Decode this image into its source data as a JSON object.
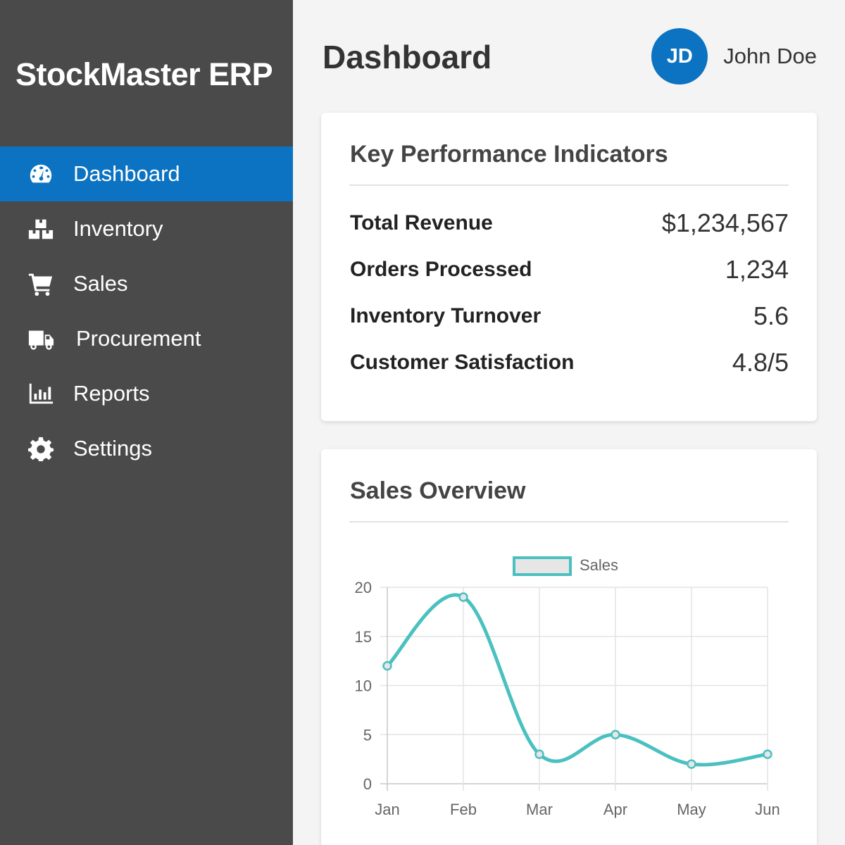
{
  "app": {
    "brand": "StockMaster ERP"
  },
  "sidebar": {
    "items": [
      {
        "label": "Dashboard",
        "icon": "gauge-icon",
        "active": true
      },
      {
        "label": "Inventory",
        "icon": "boxes-icon",
        "active": false
      },
      {
        "label": "Sales",
        "icon": "cart-icon",
        "active": false
      },
      {
        "label": "Procurement",
        "icon": "truck-icon",
        "active": false
      },
      {
        "label": "Reports",
        "icon": "bar-chart-icon",
        "active": false
      },
      {
        "label": "Settings",
        "icon": "gear-icon",
        "active": false
      }
    ]
  },
  "header": {
    "title": "Dashboard",
    "user": {
      "initials": "JD",
      "name": "John Doe"
    }
  },
  "kpi": {
    "title": "Key Performance Indicators",
    "rows": [
      {
        "label": "Total Revenue",
        "value": "$1,234,567"
      },
      {
        "label": "Orders Processed",
        "value": "1,234"
      },
      {
        "label": "Inventory Turnover",
        "value": "5.6"
      },
      {
        "label": "Customer Satisfaction",
        "value": "4.8/5"
      }
    ]
  },
  "sales": {
    "title": "Sales Overview"
  },
  "colors": {
    "sidebar": "#4a4a4a",
    "accent": "#0b73c1",
    "series": "#4bc0c0"
  },
  "chart_data": {
    "type": "line",
    "categories": [
      "Jan",
      "Feb",
      "Mar",
      "Apr",
      "May",
      "Jun"
    ],
    "series": [
      {
        "name": "Sales",
        "values": [
          12,
          19,
          3,
          5,
          2,
          3
        ]
      }
    ],
    "ylim": [
      0,
      20
    ],
    "yticks": [
      0,
      5,
      10,
      15,
      20
    ],
    "grid": true,
    "legend": "top-center",
    "title": "",
    "xlabel": "",
    "ylabel": ""
  }
}
